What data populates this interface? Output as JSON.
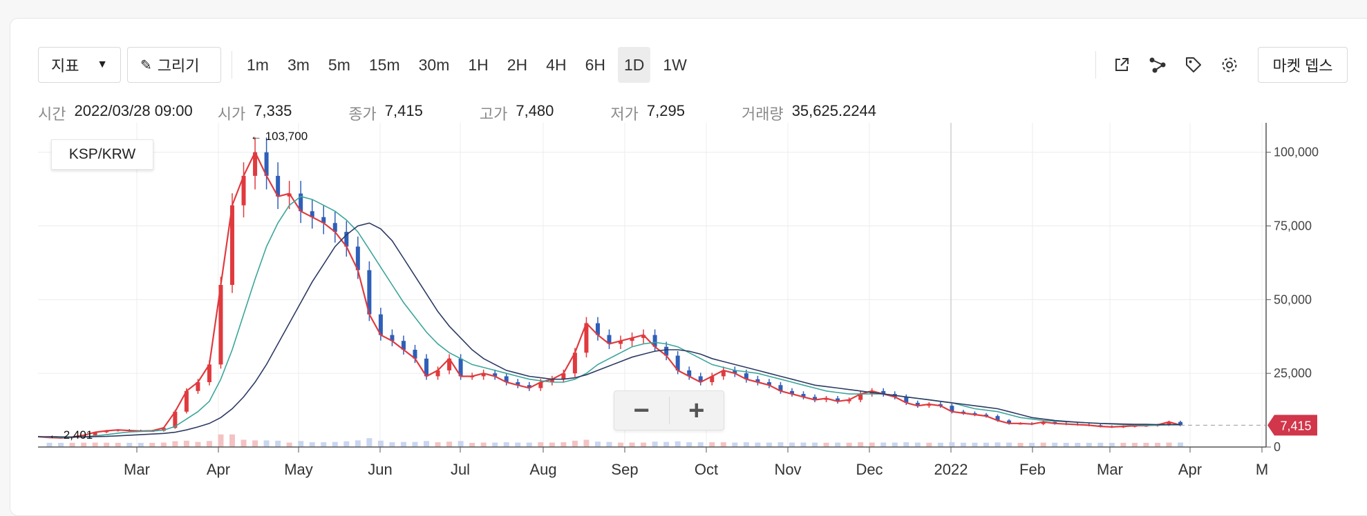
{
  "toolbar": {
    "indicator_label": "지표",
    "draw_label": "그리기",
    "timeframes": [
      "1m",
      "3m",
      "5m",
      "15m",
      "30m",
      "1H",
      "2H",
      "4H",
      "6H",
      "1D",
      "1W"
    ],
    "active_timeframe": "1D",
    "market_depth_label": "마켓 뎁스"
  },
  "ohlc": {
    "time_label": "시간",
    "time_value": "2022/03/28 09:00",
    "open_label": "시가",
    "open_value": "7,335",
    "close_label": "종가",
    "close_value": "7,415",
    "high_label": "고가",
    "high_value": "7,480",
    "low_label": "저가",
    "low_value": "7,295",
    "volume_label": "거래량",
    "volume_value": "35,625.2244"
  },
  "pair": "KSP/KRW",
  "zoom": {
    "minus": "−",
    "plus": "+"
  },
  "colors": {
    "up": "#e03a3e",
    "down": "#2f5fb8",
    "ma_short": "#e03a3e",
    "ma_mid": "#3aa59a",
    "ma_long": "#2c3a63",
    "last_price_bg": "#d1364a"
  },
  "chart_data": {
    "type": "line",
    "pair": "KSP/KRW",
    "ylim": [
      0,
      110000
    ],
    "y_ticks": [
      "100,000",
      "75,000",
      "50,000",
      "25,000",
      "0"
    ],
    "y_tick_values": [
      100000,
      75000,
      50000,
      25000,
      0
    ],
    "x_ticks": [
      "Mar",
      "Apr",
      "May",
      "Jun",
      "Jul",
      "Aug",
      "Sep",
      "Oct",
      "Nov",
      "Dec",
      "2022",
      "Feb",
      "Mar",
      "Apr",
      "M"
    ],
    "high_marker": "← 103,700",
    "high_value": 103700,
    "low_marker": "← 2,401",
    "low_value": 2401,
    "last_price": "7,415",
    "last_price_value": 7415,
    "series": [
      {
        "values": [
          3500,
          3200,
          3100,
          3400,
          4000,
          5000,
          5500,
          5800,
          5600,
          5400,
          5500,
          6500,
          12000,
          19000,
          22000,
          28000,
          55000,
          82000,
          92000,
          100000,
          92000,
          85000,
          86000,
          80000,
          78000,
          76000,
          73000,
          68000,
          60000,
          45000,
          38000,
          36000,
          33000,
          30000,
          24000,
          26000,
          30000,
          24000,
          24000,
          25000,
          24000,
          22000,
          21000,
          20000,
          22000,
          23000,
          25000,
          32000,
          42000,
          38000,
          35000,
          36000,
          37000,
          38000,
          34000,
          31000,
          26000,
          24000,
          22000,
          24000,
          26000,
          25000,
          23000,
          22000,
          21000,
          19000,
          18000,
          17000,
          16000,
          16500,
          15500,
          16000,
          18000,
          19000,
          18000,
          17000,
          15000,
          14000,
          14500,
          14000,
          12000,
          11500,
          11000,
          10500,
          9000,
          8000,
          8000,
          7800,
          8500,
          8000,
          7800,
          7600,
          7400,
          7000,
          6800,
          7000,
          7200,
          7300,
          7500,
          8500,
          7415
        ]
      },
      {
        "values": [
          3500,
          3400,
          3300,
          3300,
          3500,
          3800,
          4200,
          4700,
          5100,
          5300,
          5400,
          5700,
          7000,
          9500,
          12000,
          15500,
          23000,
          33000,
          45000,
          57000,
          68000,
          76000,
          82000,
          85000,
          84000,
          82000,
          80000,
          77000,
          73000,
          67000,
          61000,
          55000,
          49000,
          44000,
          39000,
          35000,
          32000,
          30000,
          28000,
          27000,
          26000,
          25000,
          24000,
          23000,
          22500,
          22000,
          22000,
          23000,
          25000,
          28000,
          30000,
          32000,
          34000,
          35000,
          35500,
          35000,
          34000,
          32000,
          30000,
          28000,
          27000,
          26000,
          25500,
          25000,
          24000,
          23000,
          22000,
          21000,
          20000,
          19000,
          18500,
          18000,
          18000,
          18000,
          18000,
          17500,
          17000,
          16500,
          16000,
          15500,
          15000,
          14000,
          13000,
          12500,
          12000,
          11000,
          10000,
          9500,
          9000,
          8800,
          8600,
          8400,
          8200,
          8000,
          7800,
          7600,
          7500,
          7400,
          7400,
          7500,
          7500
        ]
      },
      {
        "values": [
          3500,
          3500,
          3450,
          3400,
          3400,
          3500,
          3600,
          3800,
          4000,
          4200,
          4400,
          4600,
          5000,
          5800,
          6800,
          8000,
          10000,
          13000,
          17000,
          22000,
          28000,
          35000,
          42000,
          49000,
          56000,
          62000,
          68000,
          72000,
          75000,
          76000,
          74000,
          70000,
          64000,
          58000,
          52000,
          46000,
          41000,
          37000,
          33000,
          30000,
          28000,
          26000,
          25000,
          24000,
          23500,
          23000,
          23000,
          23500,
          24500,
          26000,
          27500,
          29000,
          30500,
          31500,
          32500,
          33000,
          33000,
          32500,
          31500,
          30000,
          29000,
          28000,
          27000,
          26000,
          25000,
          24000,
          23000,
          22000,
          21000,
          20500,
          20000,
          19500,
          19000,
          18500,
          18000,
          17500,
          17000,
          16500,
          16000,
          15500,
          15000,
          14500,
          14000,
          13500,
          13000,
          12000,
          11000,
          10000,
          9500,
          9000,
          8700,
          8400,
          8200,
          8000,
          7900,
          7800,
          7700,
          7700,
          7600,
          7600,
          7600
        ]
      }
    ]
  }
}
